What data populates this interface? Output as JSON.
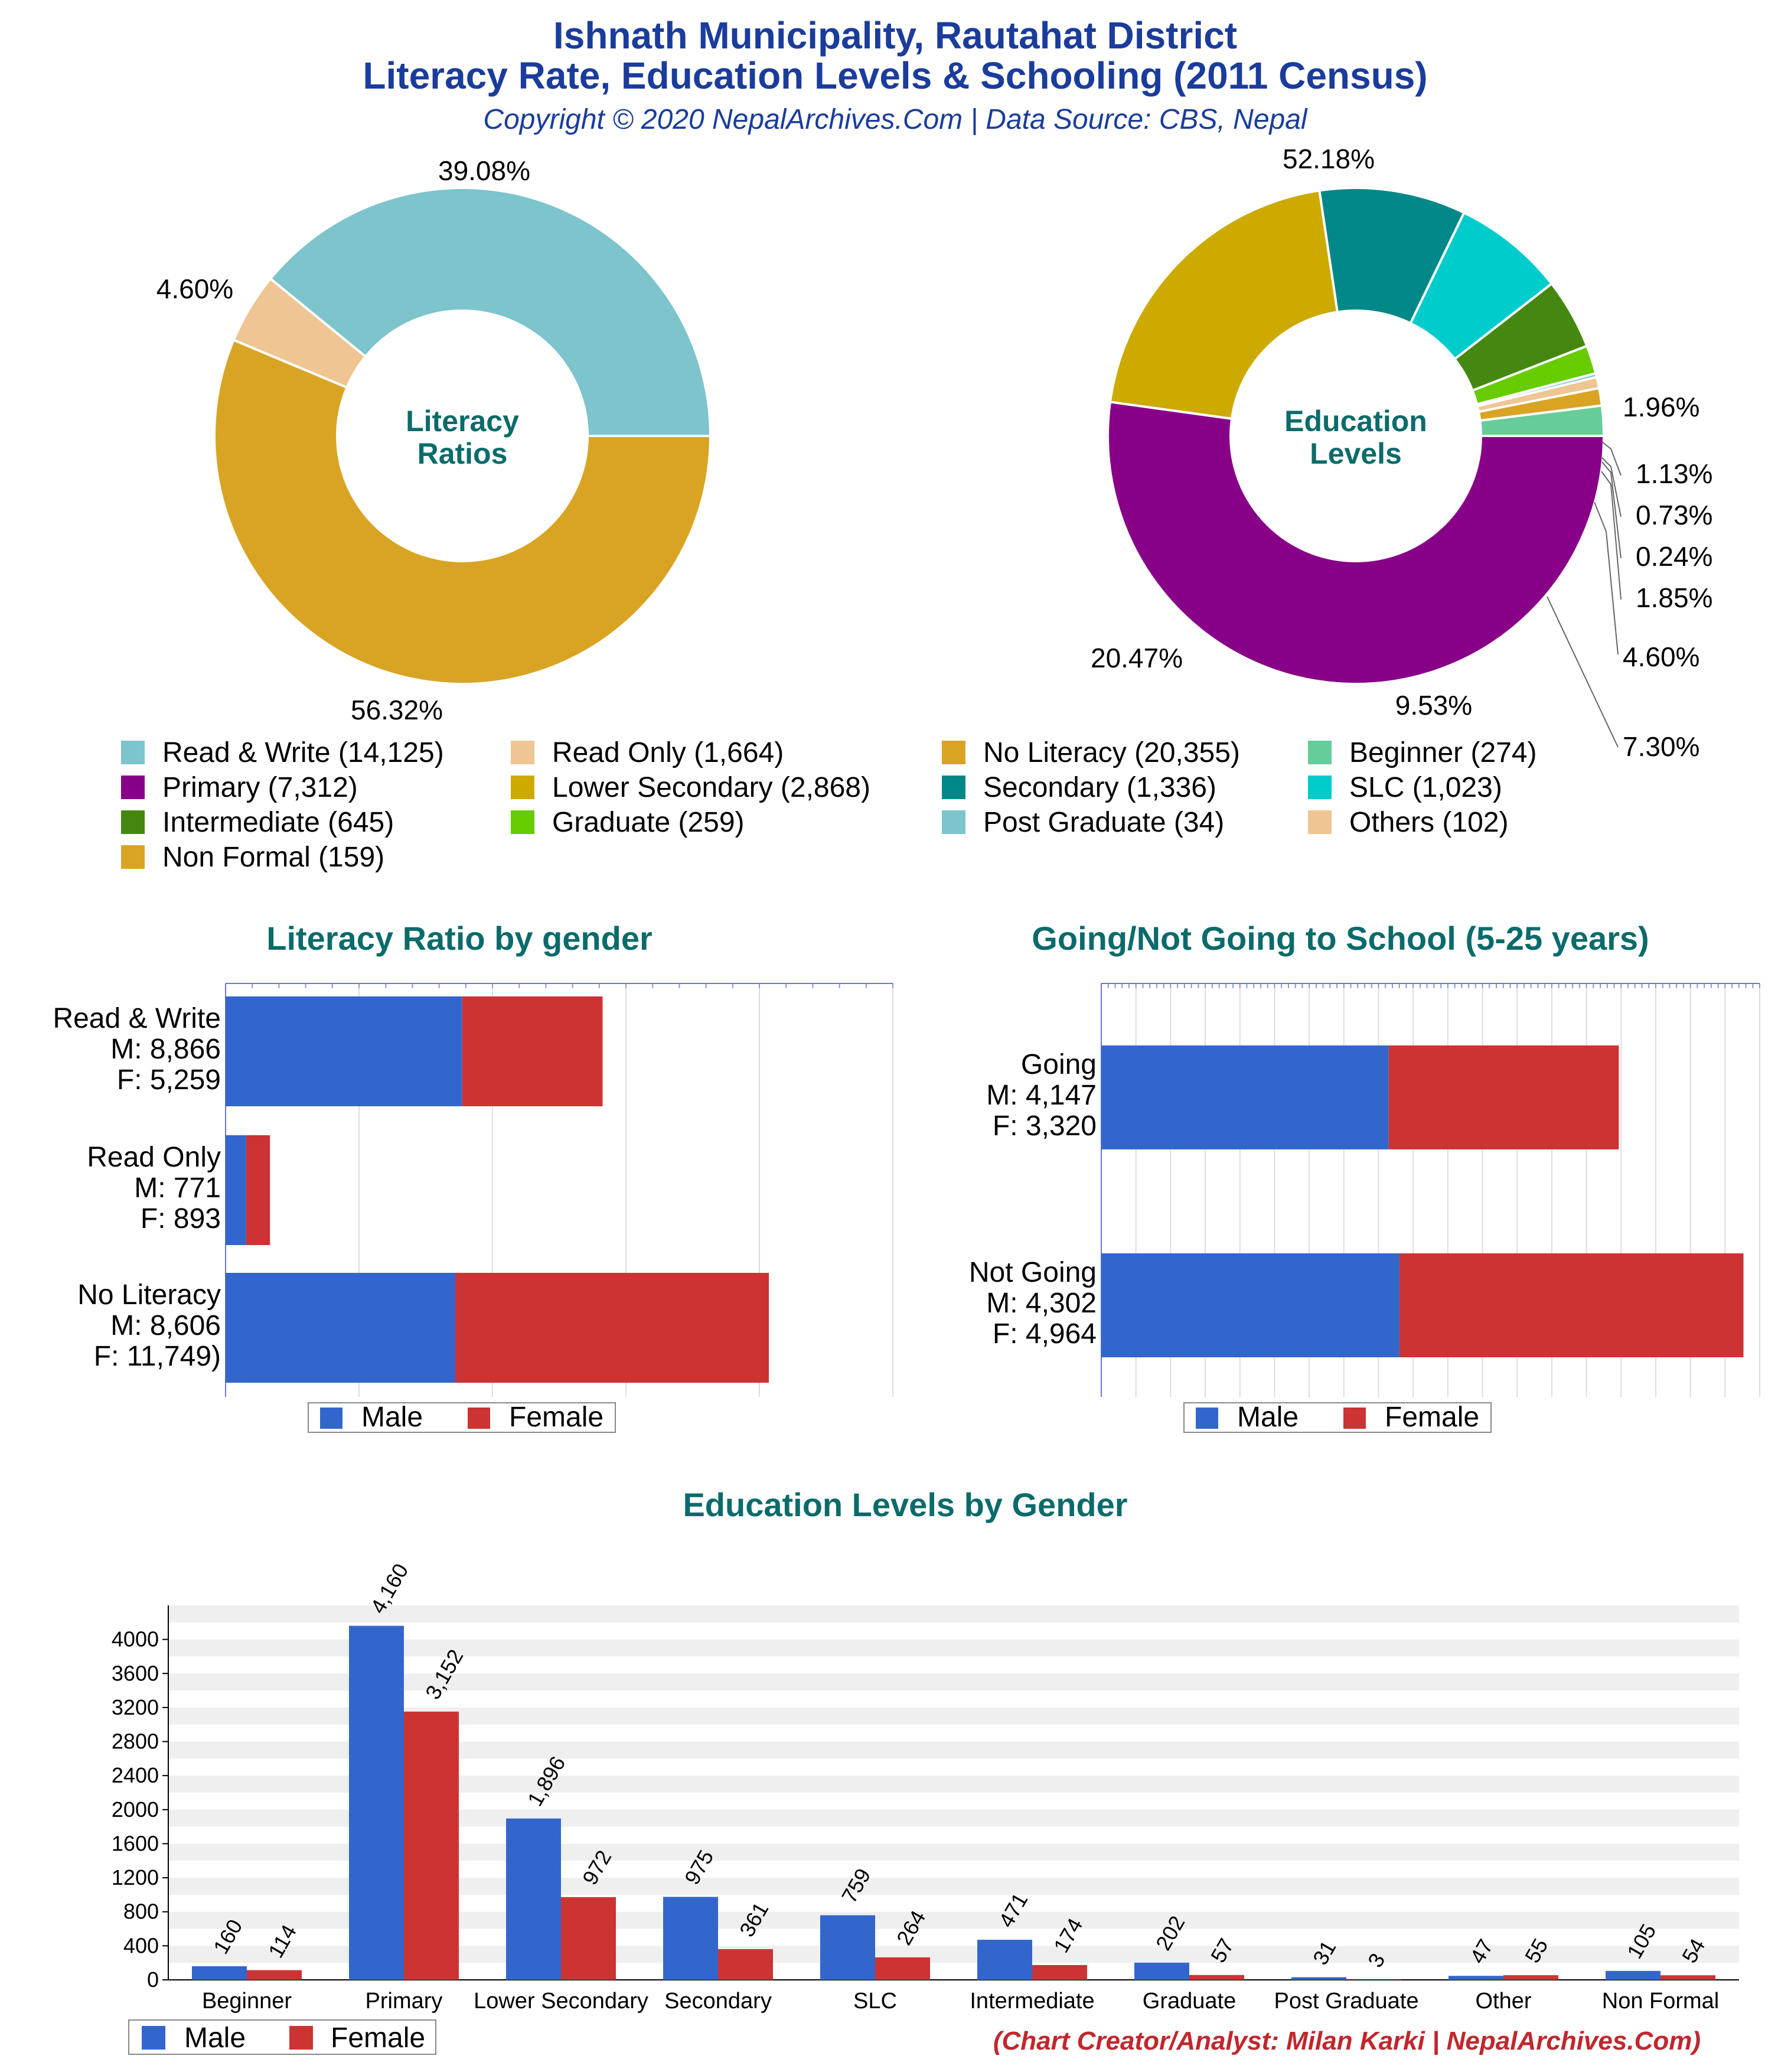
{
  "header": {
    "title_line1": "Ishnath Municipality, Rautahat District",
    "title_line2": "Literacy Rate, Education Levels & Schooling (2011 Census)",
    "subtitle": "Copyright © 2020 NepalArchives.Com | Data Source: CBS, Nepal"
  },
  "legend_labels": {
    "male": "Male",
    "female": "Female"
  },
  "colors": {
    "male": "#3366cc",
    "female": "#cc3333",
    "heading": "#0b6b6b",
    "title": "#1a3c9c",
    "credit": "#c0272d"
  },
  "footer": {
    "credit": "(Chart Creator/Analyst: Milan Karki | NepalArchives.Com)"
  },
  "chart_data": [
    {
      "type": "pie",
      "center_label": [
        "Literacy",
        "Ratios"
      ],
      "slices": [
        {
          "label": "Read & Write",
          "value": 14125,
          "percent": "39.08%",
          "color": "#7dc4cc"
        },
        {
          "label": "Read Only",
          "value": 1664,
          "percent": "4.60%",
          "color": "#efc593"
        },
        {
          "label": "No Literacy",
          "value": 20355,
          "percent": "56.32%",
          "color": "#d9a424"
        }
      ]
    },
    {
      "type": "pie",
      "center_label": [
        "Education",
        "Levels"
      ],
      "slices": [
        {
          "label": "Beginner",
          "value": 274,
          "percent": "1.96%",
          "color": "#66cc99"
        },
        {
          "label": "Non Formal",
          "value": 159,
          "percent": "1.13%",
          "color": "#d9a424"
        },
        {
          "label": "Others",
          "value": 102,
          "percent": "0.73%",
          "color": "#efc593"
        },
        {
          "label": "Post Graduate",
          "value": 34,
          "percent": "0.24%",
          "color": "#7dc4cc"
        },
        {
          "label": "Graduate",
          "value": 259,
          "percent": "1.85%",
          "color": "#66cc00"
        },
        {
          "label": "Intermediate",
          "value": 645,
          "percent": "4.60%",
          "color": "#448811"
        },
        {
          "label": "SLC",
          "value": 1023,
          "percent": "7.30%",
          "color": "#00cccc"
        },
        {
          "label": "Secondary",
          "value": 1336,
          "percent": "9.53%",
          "color": "#008888"
        },
        {
          "label": "Lower Secondary",
          "value": 2868,
          "percent": "20.47%",
          "color": "#ccaa00"
        },
        {
          "label": "Primary",
          "value": 7312,
          "percent": "52.18%",
          "color": "#880088"
        }
      ]
    },
    {
      "type": "bar",
      "orientation": "horizontal",
      "stacked": true,
      "title": "Literacy Ratio by gender",
      "categories": [
        [
          "Read & Write",
          "M: 8,866",
          "F: 5,259"
        ],
        [
          "Read Only",
          "M: 771",
          "F: 893"
        ],
        [
          "No Literacy",
          "M: 8,606",
          "F: 11,749)"
        ]
      ],
      "series": [
        {
          "name": "Male",
          "values": [
            8866,
            771,
            8606
          ]
        },
        {
          "name": "Female",
          "values": [
            5259,
            893,
            11749
          ]
        }
      ],
      "xlim": [
        0,
        25000
      ],
      "grid": true,
      "legend": "bottom"
    },
    {
      "type": "bar",
      "orientation": "horizontal",
      "stacked": true,
      "title": "Going/Not Going to School (5-25 years)",
      "categories": [
        [
          "Going",
          "M: 4,147",
          "F: 3,320"
        ],
        [
          "Not Going",
          "M: 4,302",
          "F: 4,964"
        ]
      ],
      "series": [
        {
          "name": "Male",
          "values": [
            4147,
            4302
          ]
        },
        {
          "name": "Female",
          "values": [
            3320,
            4964
          ]
        }
      ],
      "xlim": [
        0,
        9500
      ],
      "grid": true,
      "legend": "bottom"
    },
    {
      "type": "bar",
      "title": "Education Levels by Gender",
      "categories": [
        "Beginner",
        "Primary",
        "Lower Secondary",
        "Secondary",
        "SLC",
        "Intermediate",
        "Graduate",
        "Post Graduate",
        "Other",
        "Non Formal"
      ],
      "series": [
        {
          "name": "Male",
          "values": [
            160,
            4160,
            1896,
            975,
            759,
            471,
            202,
            31,
            47,
            105
          ],
          "labels": [
            "160",
            "4,160",
            "1,896",
            "975",
            "759",
            "471",
            "202",
            "31",
            "47",
            "105"
          ]
        },
        {
          "name": "Female",
          "values": [
            114,
            3152,
            972,
            361,
            264,
            174,
            57,
            3,
            55,
            54
          ],
          "labels": [
            "114",
            "3,152",
            "972",
            "361",
            "264",
            "174",
            "57",
            "3",
            "55",
            "54"
          ]
        }
      ],
      "ylim": [
        0,
        4400
      ],
      "yticks": [
        0,
        400,
        800,
        1200,
        1600,
        2000,
        2400,
        2800,
        3200,
        3600,
        4000
      ],
      "grid": true,
      "legend": "bottom-left"
    }
  ]
}
